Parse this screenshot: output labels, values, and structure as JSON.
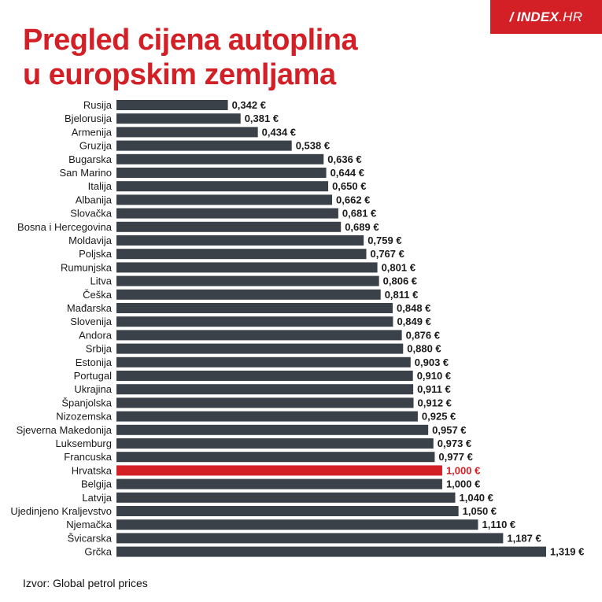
{
  "logo": {
    "mark": "/",
    "brand": "INDEX",
    "suffix": ".HR"
  },
  "header": {
    "title_line1": "Pregled cijena autoplina",
    "title_line2": "u europskim zemljama"
  },
  "footer": {
    "source": "Izvor: Global petrol prices"
  },
  "colors": {
    "accent": "#d32027",
    "bar": "#3b4148",
    "text": "#1a1a1a"
  },
  "chart_data": {
    "type": "bar",
    "orientation": "horizontal",
    "title": "Pregled cijena autoplina u europskim zemljama",
    "xlabel": "",
    "ylabel": "",
    "unit": "€",
    "highlight": "Hrvatska",
    "xlim": [
      0,
      1.319
    ],
    "categories": [
      "Rusija",
      "Bjelorusija",
      "Armenija",
      "Gruzija",
      "Bugarska",
      "San Marino",
      "Italija",
      "Albanija",
      "Slovačka",
      "Bosna i Hercegovina",
      "Moldavija",
      "Poljska",
      "Rumunjska",
      "Litva",
      "Češka",
      "Mađarska",
      "Slovenija",
      "Andora",
      "Srbija",
      "Estonija",
      "Portugal",
      "Ukrajina",
      "Španjolska",
      "Nizozemska",
      "Sjeverna Makedonija",
      "Luksemburg",
      "Francuska",
      "Hrvatska",
      "Belgija",
      "Latvija",
      "Ujedinjeno Kraljevstvo",
      "Njemačka",
      "Švicarska",
      "Grčka"
    ],
    "values": [
      0.342,
      0.381,
      0.434,
      0.538,
      0.636,
      0.644,
      0.65,
      0.662,
      0.681,
      0.689,
      0.759,
      0.767,
      0.801,
      0.806,
      0.811,
      0.848,
      0.849,
      0.876,
      0.88,
      0.903,
      0.91,
      0.911,
      0.912,
      0.925,
      0.957,
      0.973,
      0.977,
      1.0,
      1.0,
      1.04,
      1.05,
      1.11,
      1.187,
      1.319
    ],
    "value_labels": [
      "0,342 €",
      "0,381 €",
      "0,434 €",
      "0,538 €",
      "0,636 €",
      "0,644 €",
      "0,650 €",
      "0,662 €",
      "0,681 €",
      "0,689 €",
      "0,759 €",
      "0,767 €",
      "0,801 €",
      "0,806 €",
      "0,811 €",
      "0,848 €",
      "0,849 €",
      "0,876 €",
      "0,880 €",
      "0,903 €",
      "0,910 €",
      "0,911 €",
      "0,912 €",
      "0,925 €",
      "0,957 €",
      "0,973 €",
      "0,977 €",
      "1,000 €",
      "1,000 €",
      "1,040 €",
      "1,050 €",
      "1,110 €",
      "1,187 €",
      "1,319 €"
    ]
  }
}
